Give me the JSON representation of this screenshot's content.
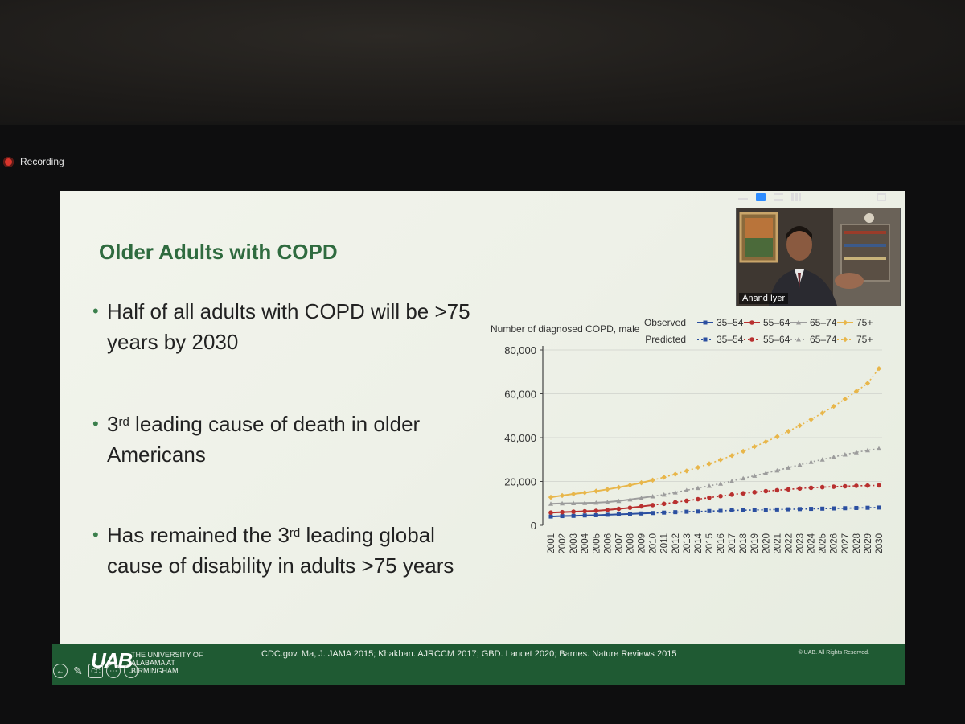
{
  "recording": {
    "label": "Recording"
  },
  "slide": {
    "title": "Older Adults with COPD",
    "bullets": [
      {
        "text": "Half of all adults with COPD will be >75 years by 2030"
      },
      {
        "prefix": "3",
        "sup": "rd",
        "text": " leading cause of death in older Americans"
      },
      {
        "prefix": "Has remained the 3",
        "sup": "rd",
        "text": " leading global cause of disability in adults >75 years"
      }
    ]
  },
  "video": {
    "participant_name": "Anand Iyer"
  },
  "footer": {
    "logo_text": "UAB",
    "institution": "THE UNIVERSITY OF ALABAMA AT BIRMINGHAM",
    "citation": "CDC.gov. Ma, J. JAMA 2015; Khakban. AJRCCM 2017; GBD. Lancet 2020; Barnes. Nature Reviews 2015",
    "copyright": "© UAB. All Rights Reserved."
  },
  "controls": {
    "back": "←",
    "pen": "✎",
    "captions": "CC",
    "more": "⋯",
    "forward": "→"
  },
  "colors": {
    "s35": "#2b4fa0",
    "s55": "#b8302f",
    "s65": "#9c9c9c",
    "s75": "#e8b64a",
    "title": "#2f6b3f",
    "footer": "#1f5a33"
  },
  "chart_data": {
    "type": "line",
    "ylabel": "Number of diagnosed COPD, male",
    "ylim": [
      0,
      80000
    ],
    "yticks": [
      "80,000",
      "60,000",
      "40,000",
      "20,000",
      "0"
    ],
    "x": [
      "2001",
      "2002",
      "2003",
      "2004",
      "2005",
      "2006",
      "2007",
      "2008",
      "2009",
      "2010",
      "2011",
      "2012",
      "2013",
      "2014",
      "2015",
      "2016",
      "2017",
      "2018",
      "2019",
      "2020",
      "2021",
      "2022",
      "2023",
      "2024",
      "2025",
      "2026",
      "2027",
      "2028",
      "2029",
      "2030"
    ],
    "legend": {
      "observed_label": "Observed",
      "predicted_label": "Predicted",
      "entries": [
        "35–54",
        "55–64",
        "65–74",
        "75+"
      ]
    },
    "observed_through": "2010",
    "series": [
      {
        "name": "35–54",
        "values": [
          4000,
          4200,
          4300,
          4500,
          4600,
          4800,
          5000,
          5200,
          5400,
          5600,
          5800,
          6000,
          6200,
          6300,
          6500,
          6600,
          6800,
          6900,
          7000,
          7100,
          7200,
          7300,
          7400,
          7500,
          7600,
          7700,
          7800,
          7900,
          8000,
          8100
        ]
      },
      {
        "name": "55–64",
        "values": [
          5800,
          6000,
          6200,
          6400,
          6600,
          7000,
          7500,
          8000,
          8600,
          9200,
          9800,
          10500,
          11200,
          11900,
          12600,
          13300,
          14000,
          14600,
          15100,
          15600,
          16000,
          16400,
          16800,
          17100,
          17400,
          17600,
          17800,
          18000,
          18100,
          18200
        ]
      },
      {
        "name": "65–74",
        "values": [
          9800,
          10000,
          10100,
          10200,
          10300,
          10600,
          11100,
          11800,
          12500,
          13200,
          14000,
          15000,
          16000,
          17000,
          18000,
          19000,
          20200,
          21400,
          22600,
          23800,
          25000,
          26300,
          27600,
          28900,
          30000,
          31200,
          32300,
          33300,
          34200,
          35000
        ]
      },
      {
        "name": "75+",
        "values": [
          12800,
          13600,
          14300,
          14900,
          15600,
          16400,
          17300,
          18300,
          19400,
          20600,
          21900,
          23300,
          24800,
          26400,
          28100,
          29900,
          31800,
          33800,
          35900,
          38100,
          40400,
          42900,
          45500,
          48300,
          51200,
          54300,
          57600,
          61100,
          64800,
          71500
        ]
      }
    ]
  }
}
